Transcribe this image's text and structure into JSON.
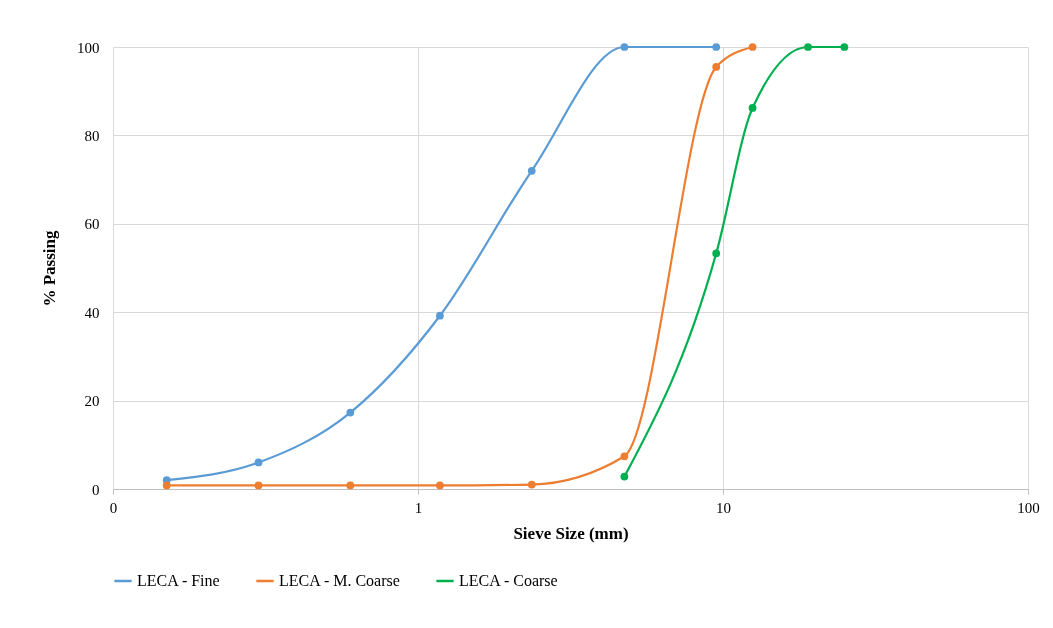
{
  "chart_data": {
    "type": "line",
    "xlabel": "Sieve Size (mm)",
    "ylabel": "% Passing",
    "log": "x",
    "xlim": [
      0.1,
      100
    ],
    "xticks": [
      {
        "value": 0.1,
        "label": "0"
      },
      1,
      10,
      100
    ],
    "ylim": [
      0,
      100
    ],
    "yticks": [
      0,
      20,
      40,
      60,
      80,
      100
    ],
    "grid": true,
    "legend": "bottom",
    "marker": "circle",
    "line_style": "solid",
    "series": [
      {
        "name": "LECA - Fine",
        "color": "#5b9bd5",
        "x": [
          0.15,
          0.3,
          0.6,
          1.18,
          2.36,
          4.75,
          9.5
        ],
        "values": [
          2,
          6,
          17.3,
          39.2,
          72,
          100,
          100
        ]
      },
      {
        "name": "LECA - M. Coarse",
        "color": "#ed7d31",
        "x": [
          0.15,
          0.3,
          0.6,
          1.18,
          2.36,
          4.75,
          9.5,
          12.5
        ],
        "values": [
          0.8,
          0.8,
          0.8,
          0.8,
          1,
          7.4,
          95.5,
          100
        ]
      },
      {
        "name": "LECA - Coarse",
        "color": "#00b050",
        "x": [
          4.75,
          9.5,
          12.5,
          19,
          25
        ],
        "values": [
          2.8,
          53.3,
          86.2,
          100,
          100
        ]
      }
    ]
  }
}
